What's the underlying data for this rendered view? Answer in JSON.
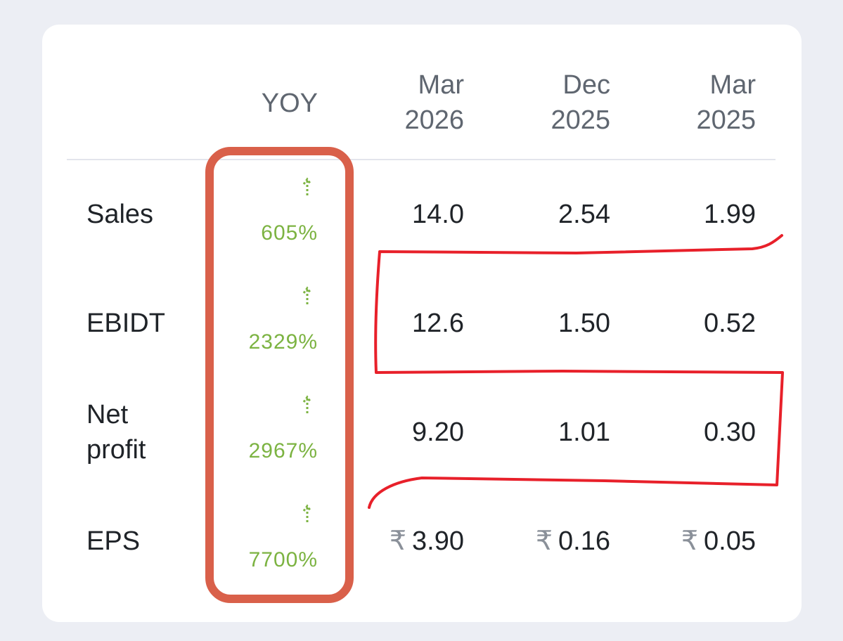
{
  "table": {
    "header": [
      "YOY",
      {
        "month": "Mar",
        "year": "2026"
      },
      {
        "month": "Dec",
        "year": "2025"
      },
      {
        "month": "Mar",
        "year": "2025"
      }
    ],
    "currency": "₹",
    "rows": [
      {
        "label": "Sales",
        "yoy": "605%",
        "values": [
          "14.0",
          "2.54",
          "1.99"
        ]
      },
      {
        "label": "EBIDT",
        "yoy": "2329%",
        "values": [
          "12.6",
          "1.50",
          "0.52"
        ]
      },
      {
        "label": "Net profit",
        "yoy": "2967%",
        "values": [
          "9.20",
          "1.01",
          "0.30"
        ]
      },
      {
        "label": "EPS",
        "yoy": "7700%",
        "values": [
          "3.90",
          "0.16",
          "0.05"
        ],
        "currency": true
      }
    ]
  }
}
